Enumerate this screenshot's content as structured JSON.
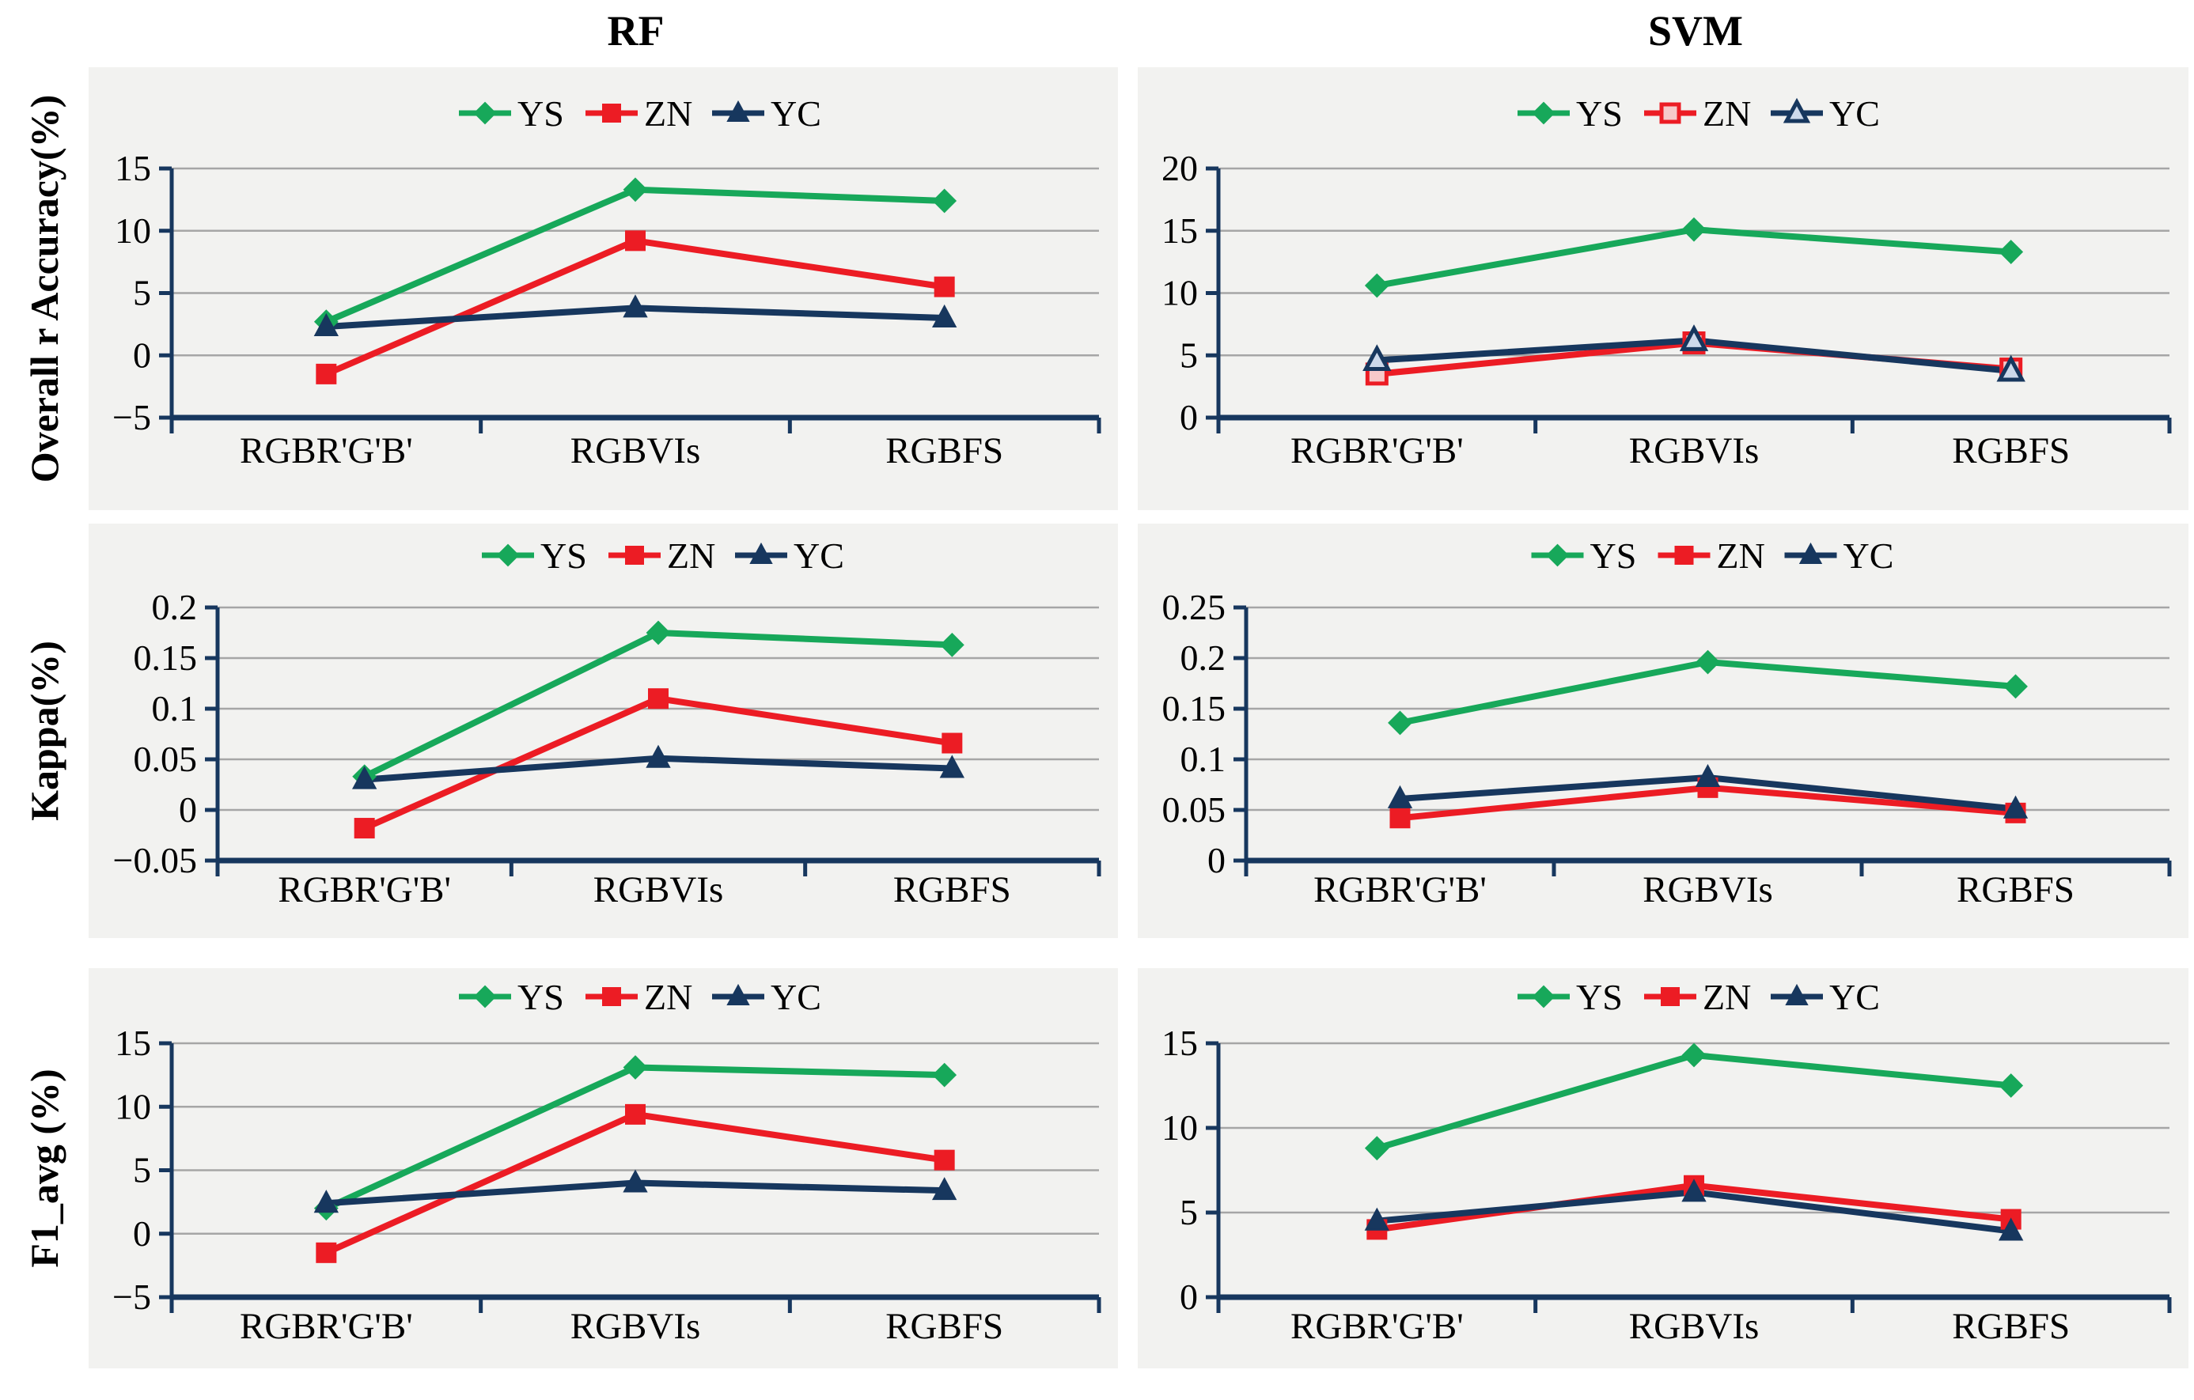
{
  "page": {
    "background": "#ffffff",
    "panel_background": "#f2f2f0"
  },
  "colors": {
    "ys_green": "#17a85a",
    "zn_red": "#ec1c24",
    "yc_navy": "#17375e",
    "gridline_gray": "#a6a6a6",
    "axis_navy": "#17375e",
    "open_square_fill": "#f6c9ca",
    "open_triangle_fill": "#cdd9eb",
    "text_black": "#000000"
  },
  "columns": [
    {
      "title": "RF"
    },
    {
      "title": "SVM"
    }
  ],
  "rows": [
    {
      "label": "Overall r Accuracy(%)"
    },
    {
      "label": "Kappa(%)"
    },
    {
      "label": "F1_avg (%)"
    }
  ],
  "chart_data": [
    {
      "type": "line",
      "model": "RF",
      "metric": "Overall r Accuracy(%)",
      "grid": true,
      "legend_position": "top-center",
      "legend_labels": [
        "YS",
        "ZN",
        "YC"
      ],
      "categories": [
        "RGBR'G'B'",
        "RGBVIs",
        "RGBFS"
      ],
      "ylim": [
        -5,
        15
      ],
      "ytick_values": [
        -5,
        0,
        5,
        10,
        15
      ],
      "yticks": [
        "−5",
        "0",
        "5",
        "10",
        "15"
      ],
      "series": [
        {
          "name": "YS",
          "color": "#17a85a",
          "marker": "diamond",
          "marker_style": "solid",
          "values": [
            2.7,
            13.3,
            12.4
          ]
        },
        {
          "name": "ZN",
          "color": "#ec1c24",
          "marker": "square",
          "marker_style": "solid",
          "values": [
            -1.5,
            9.2,
            5.5
          ]
        },
        {
          "name": "YC",
          "color": "#17375e",
          "marker": "triangle",
          "marker_style": "solid",
          "values": [
            2.3,
            3.8,
            3.0
          ]
        }
      ]
    },
    {
      "type": "line",
      "model": "SVM",
      "metric": "Overall r Accuracy(%)",
      "grid": true,
      "legend_position": "top-center",
      "legend_labels": [
        "YS",
        "ZN",
        "YC"
      ],
      "categories": [
        "RGBR'G'B'",
        "RGBVIs",
        "RGBFS"
      ],
      "ylim": [
        0,
        20
      ],
      "ytick_values": [
        0,
        5,
        10,
        15,
        20
      ],
      "yticks": [
        "0",
        "5",
        "10",
        "15",
        "20"
      ],
      "series": [
        {
          "name": "YS",
          "color": "#17a85a",
          "marker": "diamond",
          "marker_style": "solid",
          "values": [
            10.6,
            15.1,
            13.3
          ]
        },
        {
          "name": "ZN",
          "color": "#ec1c24",
          "marker": "square",
          "marker_style": "open",
          "marker_fill": "#f6c9ca",
          "values": [
            3.5,
            6.0,
            3.9
          ]
        },
        {
          "name": "YC",
          "color": "#17375e",
          "marker": "triangle",
          "marker_style": "open",
          "marker_fill": "#cdd9eb",
          "values": [
            4.6,
            6.2,
            3.75
          ]
        }
      ]
    },
    {
      "type": "line",
      "model": "RF",
      "metric": "Kappa(%)",
      "grid": true,
      "legend_position": "top-center",
      "legend_labels": [
        "YS",
        "ZN",
        "YC"
      ],
      "categories": [
        "RGBR'G'B'",
        "RGBVIs",
        "RGBFS"
      ],
      "ylim": [
        -0.05,
        0.2
      ],
      "ytick_values": [
        -0.05,
        0,
        0.05,
        0.1,
        0.15,
        0.2
      ],
      "yticks": [
        "−0.05",
        "0",
        "0.05",
        "0.1",
        "0.15",
        "0.2"
      ],
      "series": [
        {
          "name": "YS",
          "color": "#17a85a",
          "marker": "diamond",
          "marker_style": "solid",
          "values": [
            0.033,
            0.175,
            0.163
          ]
        },
        {
          "name": "ZN",
          "color": "#ec1c24",
          "marker": "square",
          "marker_style": "solid",
          "values": [
            -0.018,
            0.11,
            0.066
          ]
        },
        {
          "name": "YC",
          "color": "#17375e",
          "marker": "triangle",
          "marker_style": "solid",
          "values": [
            0.03,
            0.051,
            0.041
          ]
        }
      ]
    },
    {
      "type": "line",
      "model": "SVM",
      "metric": "Kappa(%)",
      "grid": true,
      "legend_position": "top-center",
      "legend_labels": [
        "YS",
        "ZN",
        "YC"
      ],
      "categories": [
        "RGBR'G'B'",
        "RGBVIs",
        "RGBFS"
      ],
      "ylim": [
        0,
        0.25
      ],
      "ytick_values": [
        0,
        0.05,
        0.1,
        0.15,
        0.2,
        0.25
      ],
      "yticks": [
        "0",
        "0.05",
        "0.1",
        "0.15",
        "0.2",
        "0.25"
      ],
      "series": [
        {
          "name": "YS",
          "color": "#17a85a",
          "marker": "diamond",
          "marker_style": "solid",
          "values": [
            0.136,
            0.196,
            0.172
          ]
        },
        {
          "name": "ZN",
          "color": "#ec1c24",
          "marker": "square",
          "marker_style": "solid",
          "values": [
            0.042,
            0.072,
            0.047
          ]
        },
        {
          "name": "YC",
          "color": "#17375e",
          "marker": "triangle",
          "marker_style": "solid",
          "values": [
            0.061,
            0.082,
            0.051
          ]
        }
      ]
    },
    {
      "type": "line",
      "model": "RF",
      "metric": "F1_avg (%)",
      "grid": true,
      "legend_position": "top-center",
      "legend_labels": [
        "YS",
        "ZN",
        "YC"
      ],
      "categories": [
        "RGBR'G'B'",
        "RGBVIs",
        "RGBFS"
      ],
      "ylim": [
        -5,
        15
      ],
      "ytick_values": [
        -5,
        0,
        5,
        10,
        15
      ],
      "yticks": [
        "−5",
        "0",
        "5",
        "10",
        "15"
      ],
      "series": [
        {
          "name": "YS",
          "color": "#17a85a",
          "marker": "diamond",
          "marker_style": "solid",
          "values": [
            2.0,
            13.1,
            12.5
          ]
        },
        {
          "name": "ZN",
          "color": "#ec1c24",
          "marker": "square",
          "marker_style": "solid",
          "values": [
            -1.5,
            9.4,
            5.8
          ]
        },
        {
          "name": "YC",
          "color": "#17375e",
          "marker": "triangle",
          "marker_style": "solid",
          "values": [
            2.4,
            4.0,
            3.4
          ]
        }
      ]
    },
    {
      "type": "line",
      "model": "SVM",
      "metric": "F1_avg (%)",
      "grid": true,
      "legend_position": "top-center",
      "legend_labels": [
        "YS",
        "ZN",
        "YC"
      ],
      "categories": [
        "RGBR'G'B'",
        "RGBVIs",
        "RGBFS"
      ],
      "ylim": [
        0,
        15
      ],
      "ytick_values": [
        0,
        5,
        10,
        15
      ],
      "yticks": [
        "0",
        "5",
        "10",
        "15"
      ],
      "series": [
        {
          "name": "YS",
          "color": "#17a85a",
          "marker": "diamond",
          "marker_style": "solid",
          "values": [
            8.8,
            14.3,
            12.5
          ]
        },
        {
          "name": "ZN",
          "color": "#ec1c24",
          "marker": "square",
          "marker_style": "solid",
          "values": [
            4.0,
            6.6,
            4.6
          ]
        },
        {
          "name": "YC",
          "color": "#17375e",
          "marker": "triangle",
          "marker_style": "solid",
          "values": [
            4.5,
            6.2,
            3.9
          ]
        }
      ]
    }
  ]
}
